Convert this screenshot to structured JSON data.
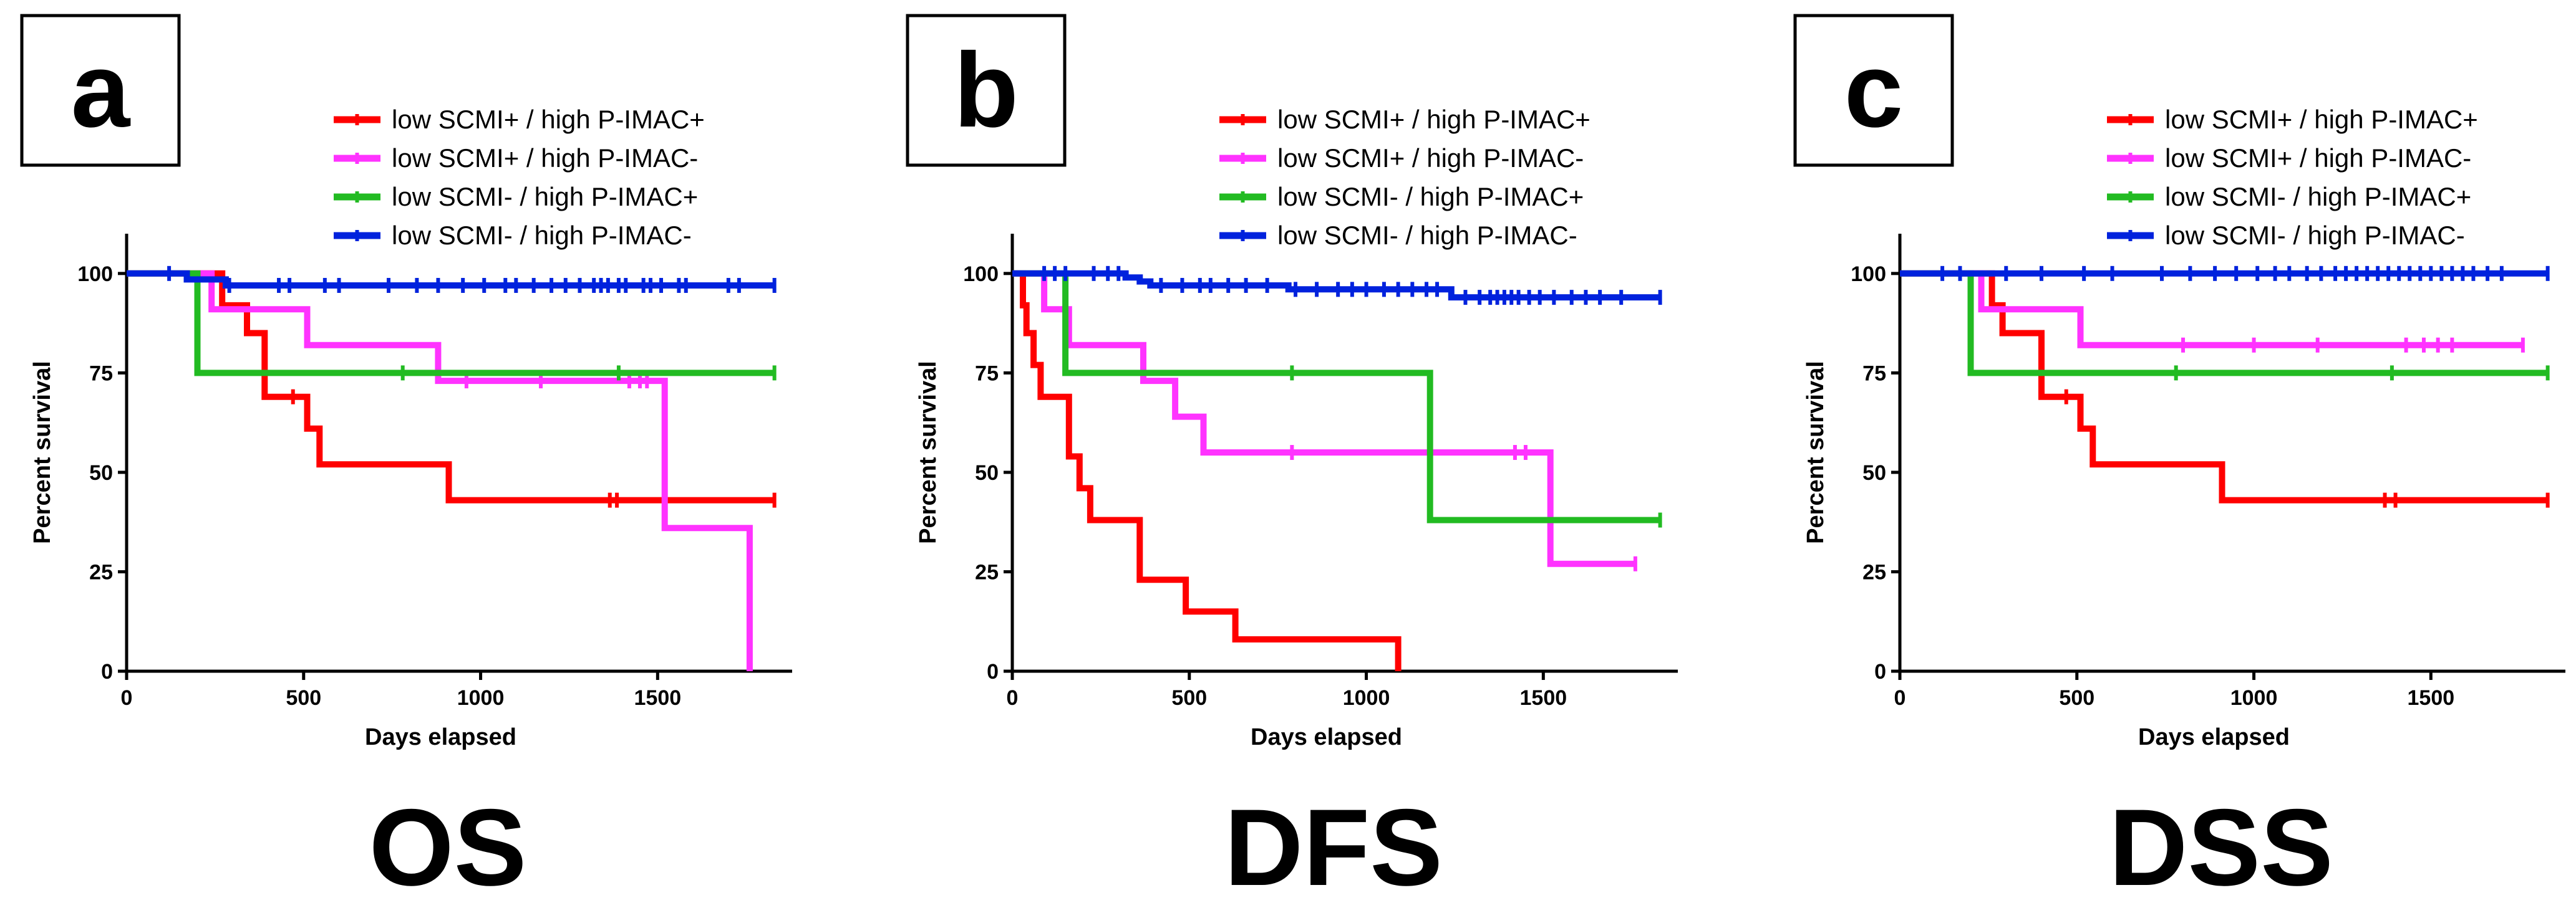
{
  "colors": {
    "red": "#ff0000",
    "magenta": "#ff33ff",
    "green": "#22bb22",
    "blue": "#0022dd",
    "axis": "#000000"
  },
  "chart_data": [
    {
      "type": "line",
      "letter": "a",
      "label": "OS",
      "xlabel": "Days elapsed",
      "ylabel": "Percent survival",
      "xlim": [
        0,
        1880
      ],
      "ylim": [
        0,
        110
      ],
      "xticks": [
        0,
        500,
        1000,
        1500
      ],
      "yticks": [
        0,
        25,
        50,
        75,
        100
      ],
      "series": [
        {
          "name": "low SCMI+ / high P-IMAC+",
          "color": "#ff0000",
          "x": [
            0,
            270,
            270,
            340,
            340,
            390,
            390,
            510,
            510,
            545,
            545,
            910,
            910,
            1830
          ],
          "y": [
            100,
            100,
            92,
            92,
            85,
            85,
            69,
            69,
            61,
            61,
            52,
            52,
            43,
            43
          ],
          "censor_x": [
            470,
            1365,
            1385,
            1830
          ],
          "censor_y": [
            69,
            43,
            43,
            43
          ]
        },
        {
          "name": "low SCMI+ / high P-IMAC-",
          "color": "#ff33ff",
          "x": [
            0,
            240,
            240,
            510,
            510,
            880,
            880,
            1520,
            1520,
            1760,
            1760
          ],
          "y": [
            100,
            100,
            91,
            91,
            82,
            82,
            73,
            73,
            36,
            36,
            0
          ],
          "censor_x": [
            960,
            1170,
            1420,
            1450,
            1470
          ],
          "censor_y": [
            73,
            73,
            73,
            73,
            73
          ]
        },
        {
          "name": "low SCMI- / high P-IMAC+",
          "color": "#22bb22",
          "x": [
            0,
            200,
            200,
            1830
          ],
          "y": [
            100,
            100,
            75,
            75
          ],
          "censor_x": [
            780,
            1390,
            1830
          ],
          "censor_y": [
            75,
            75,
            75
          ]
        },
        {
          "name": "low SCMI- / high P-IMAC-",
          "color": "#0022dd",
          "x": [
            0,
            170,
            170,
            280,
            280,
            1830
          ],
          "y": [
            100,
            100,
            98.5,
            98.5,
            97,
            97
          ],
          "censor_x": [
            120,
            290,
            430,
            460,
            560,
            600,
            740,
            820,
            880,
            950,
            1010,
            1070,
            1100,
            1150,
            1200,
            1240,
            1280,
            1320,
            1340,
            1360,
            1390,
            1410,
            1460,
            1480,
            1510,
            1560,
            1580,
            1700,
            1730,
            1830
          ],
          "censor_y": [
            100,
            97,
            97,
            97,
            97,
            97,
            97,
            97,
            97,
            97,
            97,
            97,
            97,
            97,
            97,
            97,
            97,
            97,
            97,
            97,
            97,
            97,
            97,
            97,
            97,
            97,
            97,
            97,
            97,
            97
          ]
        }
      ]
    },
    {
      "type": "line",
      "letter": "b",
      "label": "DFS",
      "xlabel": "Days elapsed",
      "ylabel": "Percent survival",
      "xlim": [
        0,
        1880
      ],
      "ylim": [
        0,
        110
      ],
      "xticks": [
        0,
        500,
        1000,
        1500
      ],
      "yticks": [
        0,
        25,
        50,
        75,
        100
      ],
      "series": [
        {
          "name": "low SCMI+ / high P-IMAC+",
          "color": "#ff0000",
          "x": [
            0,
            30,
            30,
            40,
            40,
            60,
            60,
            80,
            80,
            100,
            100,
            160,
            160,
            190,
            190,
            220,
            220,
            360,
            360,
            490,
            490,
            630,
            630,
            1090,
            1090
          ],
          "y": [
            100,
            100,
            92,
            92,
            85,
            85,
            77,
            77,
            69,
            69,
            69,
            69,
            54,
            54,
            46,
            46,
            38,
            38,
            23,
            23,
            15,
            15,
            8,
            8,
            0
          ],
          "censor_x": [],
          "censor_y": []
        },
        {
          "name": "low SCMI+ / high P-IMAC-",
          "color": "#ff33ff",
          "x": [
            0,
            90,
            90,
            160,
            160,
            370,
            370,
            460,
            460,
            540,
            540,
            1520,
            1520,
            1760
          ],
          "y": [
            100,
            100,
            91,
            91,
            82,
            82,
            73,
            73,
            64,
            64,
            55,
            55,
            27,
            27
          ],
          "censor_x": [
            790,
            1420,
            1450,
            1760
          ],
          "censor_y": [
            55,
            55,
            55,
            27
          ]
        },
        {
          "name": "low SCMI- / high P-IMAC+",
          "color": "#22bb22",
          "x": [
            0,
            150,
            150,
            1180,
            1180,
            1830
          ],
          "y": [
            100,
            100,
            75,
            75,
            38,
            38
          ],
          "censor_x": [
            790,
            1830
          ],
          "censor_y": [
            75,
            38
          ]
        },
        {
          "name": "low SCMI- / high P-IMAC-",
          "color": "#0022dd",
          "x": [
            0,
            320,
            320,
            360,
            360,
            390,
            390,
            780,
            780,
            1240,
            1240,
            1830
          ],
          "y": [
            100,
            100,
            99,
            99,
            98,
            98,
            97,
            97,
            96,
            96,
            94,
            94
          ],
          "censor_x": [
            90,
            120,
            150,
            230,
            270,
            300,
            420,
            480,
            530,
            560,
            610,
            660,
            720,
            800,
            860,
            920,
            960,
            1000,
            1050,
            1090,
            1130,
            1170,
            1200,
            1280,
            1320,
            1350,
            1370,
            1390,
            1410,
            1430,
            1460,
            1490,
            1530,
            1580,
            1620,
            1660,
            1720,
            1830
          ],
          "censor_y": [
            100,
            100,
            100,
            100,
            100,
            100,
            97,
            97,
            97,
            97,
            97,
            97,
            97,
            96,
            96,
            96,
            96,
            96,
            96,
            96,
            96,
            96,
            96,
            94,
            94,
            94,
            94,
            94,
            94,
            94,
            94,
            94,
            94,
            94,
            94,
            94,
            94,
            94
          ]
        }
      ]
    },
    {
      "type": "line",
      "letter": "c",
      "label": "DSS",
      "xlabel": "Days elapsed",
      "ylabel": "Percent survival",
      "xlim": [
        0,
        1880
      ],
      "ylim": [
        0,
        110
      ],
      "xticks": [
        0,
        500,
        1000,
        1500
      ],
      "yticks": [
        0,
        25,
        50,
        75,
        100
      ],
      "series": [
        {
          "name": "low SCMI+ / high P-IMAC+",
          "color": "#ff0000",
          "x": [
            0,
            260,
            260,
            290,
            290,
            400,
            400,
            510,
            510,
            545,
            545,
            910,
            910,
            1830
          ],
          "y": [
            100,
            100,
            92,
            92,
            85,
            85,
            69,
            69,
            61,
            61,
            52,
            52,
            43,
            43
          ],
          "censor_x": [
            470,
            1370,
            1400,
            1830
          ],
          "censor_y": [
            69,
            43,
            43,
            43
          ]
        },
        {
          "name": "low SCMI+ / high P-IMAC-",
          "color": "#ff33ff",
          "x": [
            0,
            230,
            230,
            510,
            510,
            1760
          ],
          "y": [
            100,
            100,
            91,
            91,
            82,
            82
          ],
          "censor_x": [
            800,
            1000,
            1180,
            1430,
            1480,
            1520,
            1560,
            1760
          ],
          "censor_y": [
            82,
            82,
            82,
            82,
            82,
            82,
            82,
            82
          ]
        },
        {
          "name": "low SCMI- / high P-IMAC+",
          "color": "#22bb22",
          "x": [
            0,
            200,
            200,
            1830
          ],
          "y": [
            100,
            100,
            75,
            75
          ],
          "censor_x": [
            780,
            1390,
            1830
          ],
          "censor_y": [
            75,
            75,
            75
          ]
        },
        {
          "name": "low SCMI- / high P-IMAC-",
          "color": "#0022dd",
          "x": [
            0,
            1830
          ],
          "y": [
            100,
            100
          ],
          "censor_x": [
            120,
            170,
            300,
            400,
            520,
            600,
            740,
            820,
            890,
            950,
            1010,
            1060,
            1100,
            1150,
            1190,
            1230,
            1260,
            1290,
            1320,
            1350,
            1380,
            1410,
            1440,
            1470,
            1500,
            1530,
            1560,
            1590,
            1620,
            1660,
            1700,
            1830
          ],
          "censor_y": [
            100,
            100,
            100,
            100,
            100,
            100,
            100,
            100,
            100,
            100,
            100,
            100,
            100,
            100,
            100,
            100,
            100,
            100,
            100,
            100,
            100,
            100,
            100,
            100,
            100,
            100,
            100,
            100,
            100,
            100,
            100,
            100
          ]
        }
      ]
    }
  ]
}
